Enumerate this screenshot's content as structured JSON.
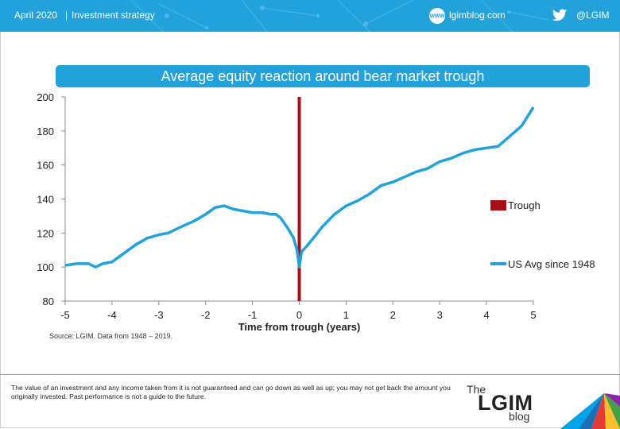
{
  "header": {
    "date": "April 2020",
    "separator": "|",
    "category": "Investment strategy",
    "web_icon_text": "www",
    "site": "lgimblog.com",
    "twitter": "@LGIM"
  },
  "chart_data": {
    "type": "line",
    "title": "Average equity reaction around bear market trough",
    "xlabel": "Time from trough (years)",
    "ylabel": "",
    "xlim": [
      -5,
      5
    ],
    "ylim": [
      80,
      200
    ],
    "xticks": [
      -5,
      -4,
      -3,
      -2,
      -1,
      0,
      1,
      2,
      3,
      4,
      5
    ],
    "yticks": [
      80,
      100,
      120,
      140,
      160,
      180,
      200
    ],
    "trough": {
      "name": "Trough",
      "x": 0,
      "color": "#a50f15"
    },
    "series": [
      {
        "name": "US Avg since 1948",
        "color": "#21a2db",
        "x": [
          -5,
          -4.75,
          -4.5,
          -4.35,
          -4.2,
          -4.0,
          -3.8,
          -3.5,
          -3.25,
          -3.0,
          -2.8,
          -2.5,
          -2.25,
          -2.0,
          -1.8,
          -1.6,
          -1.4,
          -1.2,
          -1.0,
          -0.8,
          -0.6,
          -0.5,
          -0.4,
          -0.25,
          -0.12,
          -0.05,
          0,
          0.05,
          0.15,
          0.3,
          0.5,
          0.75,
          1.0,
          1.25,
          1.5,
          1.75,
          2.0,
          2.25,
          2.5,
          2.75,
          3.0,
          3.25,
          3.5,
          3.75,
          4.0,
          4.25,
          4.5,
          4.75,
          5.0
        ],
        "values": [
          101,
          102,
          102,
          100,
          102,
          103,
          107,
          113,
          117,
          119,
          120,
          124,
          127,
          131,
          135,
          136,
          134,
          133,
          132,
          132,
          131,
          131,
          129,
          123,
          117,
          110,
          100,
          109,
          112,
          117,
          124,
          131,
          136,
          139,
          143,
          148,
          150,
          153,
          156,
          158,
          162,
          164,
          167,
          169,
          170,
          171,
          177,
          183,
          194
        ]
      }
    ]
  },
  "source": "Source: LGIM. Data from 1948 – 2019.",
  "footer": {
    "disclaimer": "The value of an investment and any income taken from it is not guaranteed and can go down as well as up; you may not get back the amount you originally invested. Past performance is not a guide to the future.",
    "logo_the": "The",
    "logo_name": "LGIM",
    "logo_blog": "blog"
  }
}
